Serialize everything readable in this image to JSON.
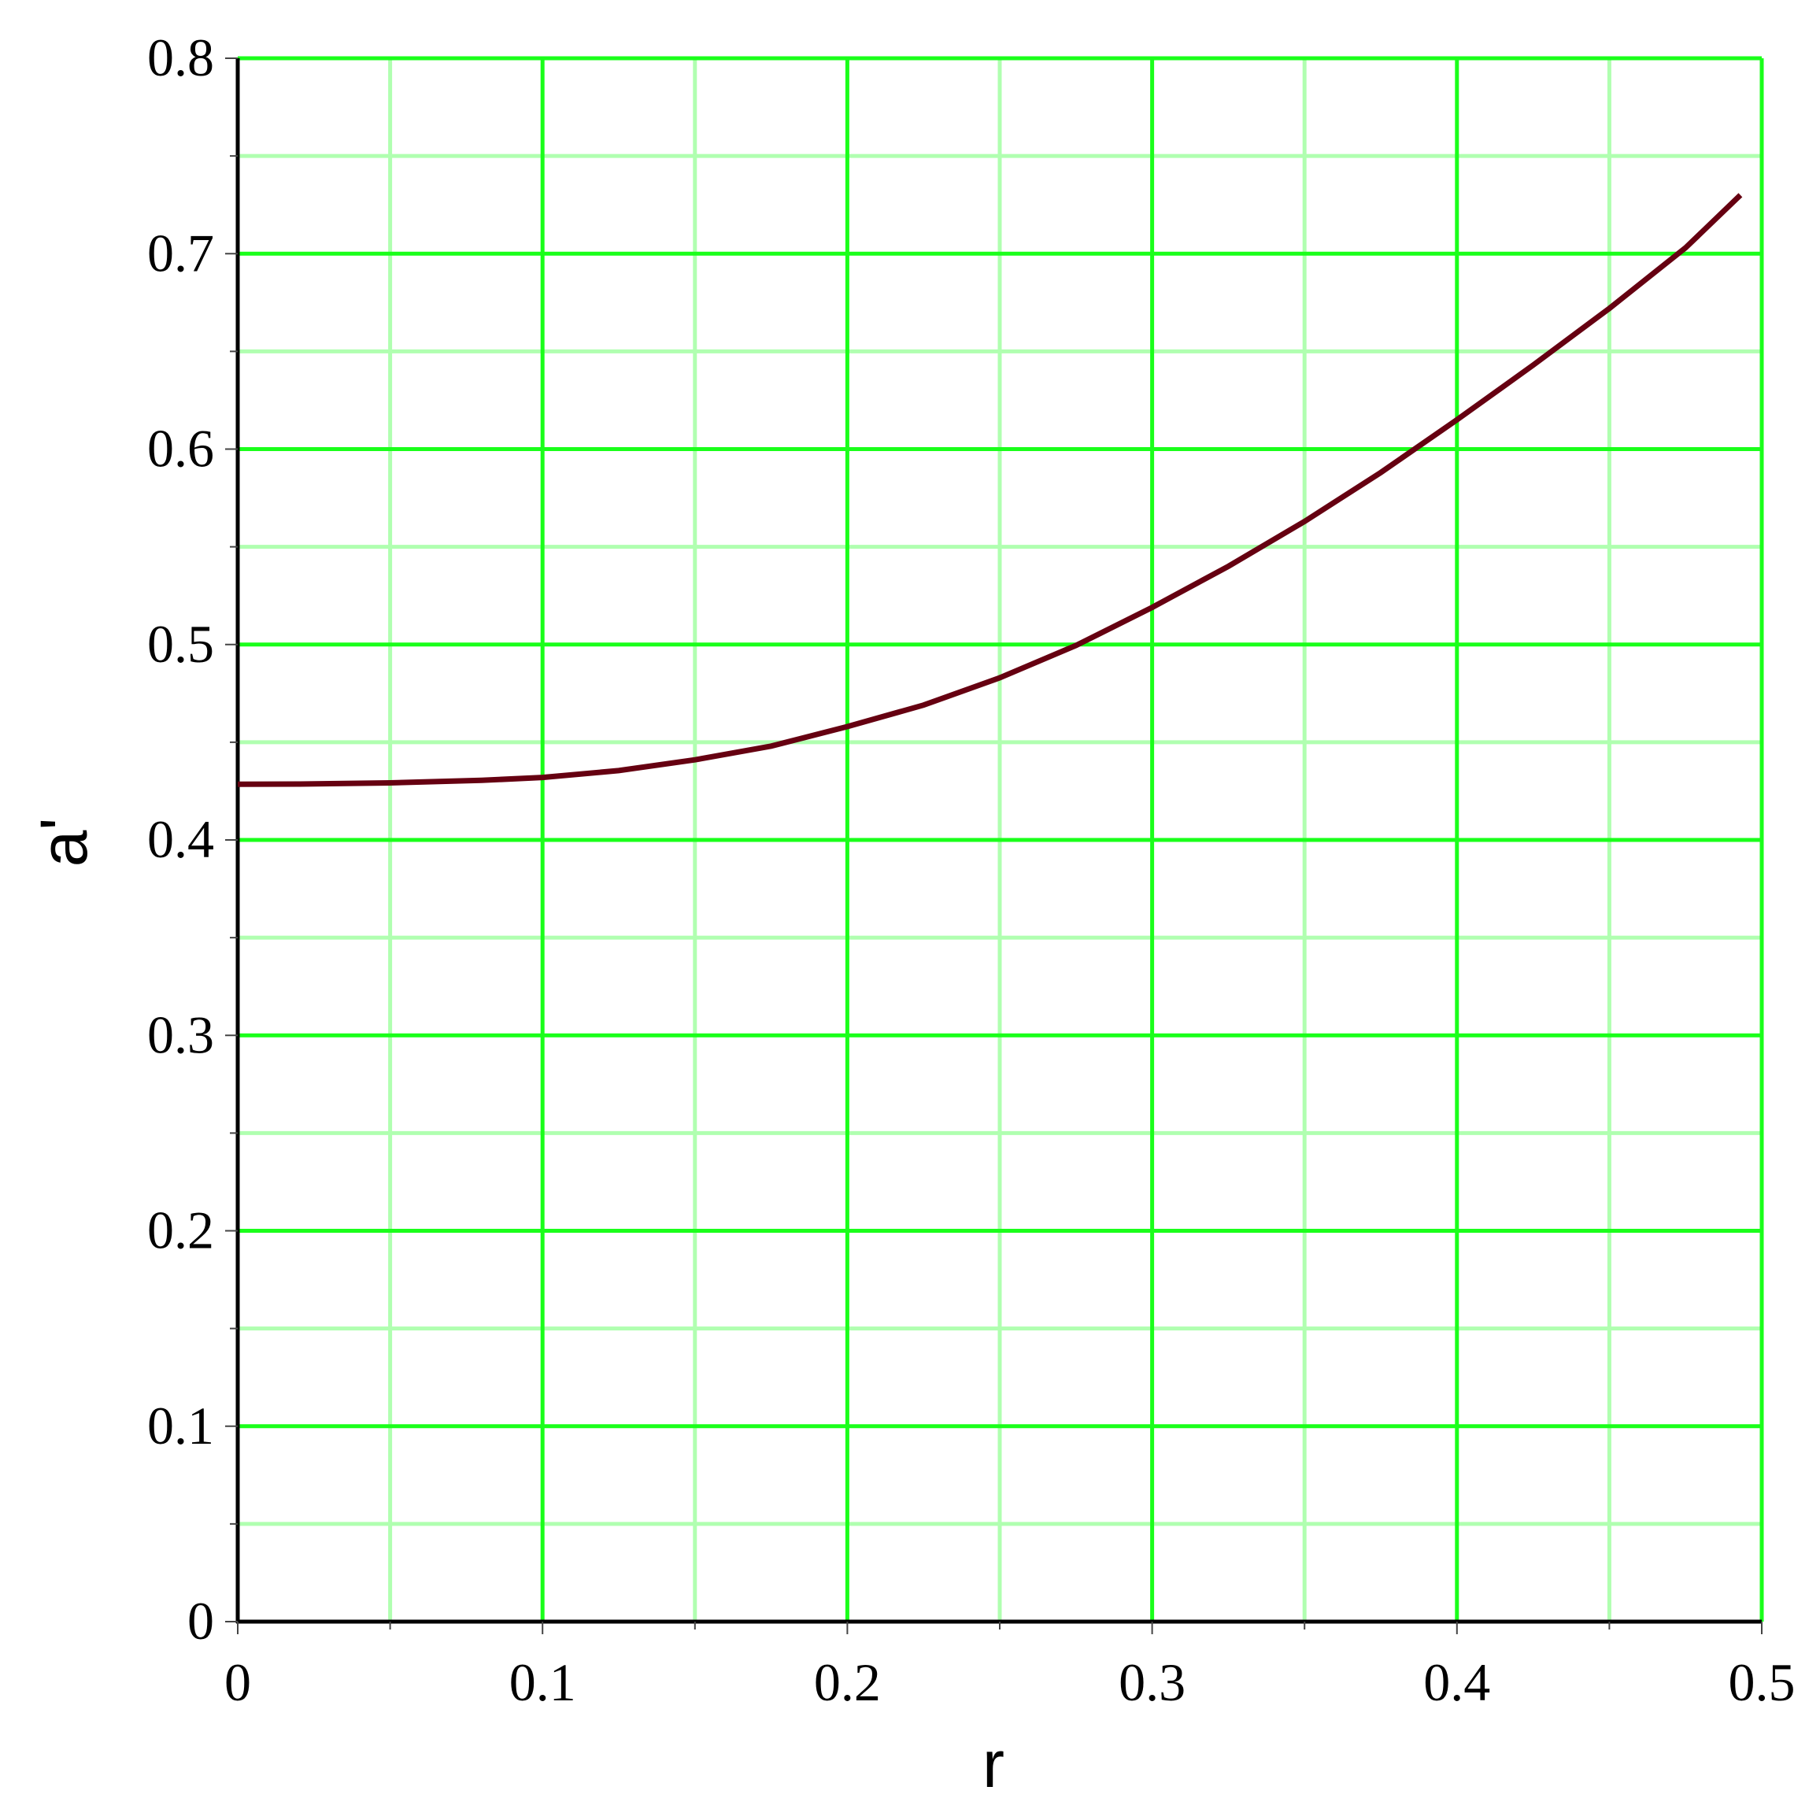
{
  "chart_data": {
    "type": "line",
    "xlabel": "r",
    "ylabel": "a'",
    "xlim": [
      0,
      0.5
    ],
    "ylim": [
      0,
      0.8
    ],
    "grid": true,
    "xticks": [
      "0",
      "0.1",
      "0.2",
      "0.3",
      "0.4",
      "0.5"
    ],
    "yticks": [
      "0",
      "0.1",
      "0.2",
      "0.3",
      "0.4",
      "0.5",
      "0.6",
      "0.7",
      "0.8"
    ],
    "colors": {
      "line": "#660011",
      "major_grid": "#1aff1a",
      "minor_grid": "#b0ffb0",
      "axis": "#000000"
    },
    "series": [
      {
        "x": [
          0,
          0.02,
          0.05,
          0.08,
          0.1,
          0.125,
          0.15,
          0.175,
          0.2,
          0.225,
          0.25,
          0.275,
          0.3,
          0.325,
          0.35,
          0.375,
          0.4,
          0.425,
          0.45,
          0.475,
          0.493
        ],
        "y": [
          0.4285,
          0.4286,
          0.4292,
          0.4305,
          0.432,
          0.4355,
          0.441,
          0.448,
          0.458,
          0.469,
          0.483,
          0.4995,
          0.519,
          0.54,
          0.563,
          0.588,
          0.615,
          0.643,
          0.672,
          0.703,
          0.73
        ]
      }
    ]
  }
}
